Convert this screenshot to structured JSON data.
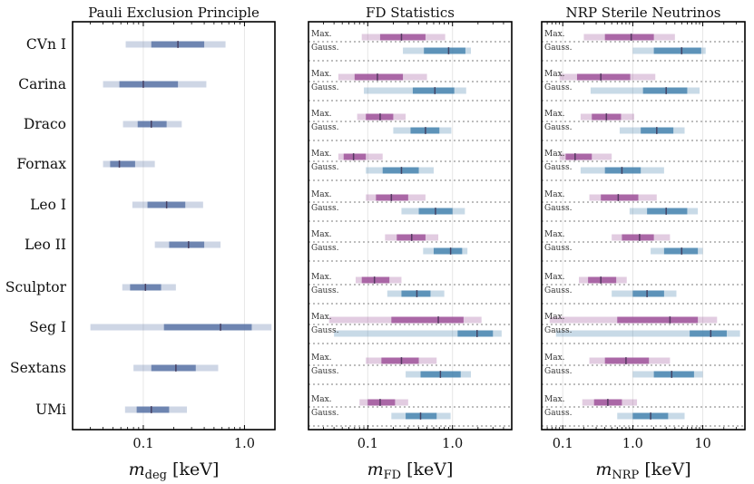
{
  "chart_data": [
    {
      "type": "interval",
      "title": "Pauli Exclusion Principle",
      "xlabel_var": "m",
      "xlabel_sub": "deg",
      "xlabel_unit": " [keV]",
      "xscale": "log",
      "xlim": [
        0.02,
        2.0
      ],
      "xticks": [
        0.1,
        1.0
      ],
      "xtick_labels": [
        "0.1",
        "1.0"
      ],
      "categories": [
        "CVn I",
        "Carina",
        "Draco",
        "Fornax",
        "Leo I",
        "Leo II",
        "Sculptor",
        "Seg I",
        "Sextans",
        "UMi"
      ],
      "series": [
        {
          "name": "",
          "color": "#5d77a8",
          "values": [
            {
              "median": 0.22,
              "inner": [
                0.12,
                0.4
              ],
              "outer": [
                0.067,
                0.65
              ]
            },
            {
              "median": 0.1,
              "inner": [
                0.058,
                0.22
              ],
              "outer": [
                0.04,
                0.42
              ]
            },
            {
              "median": 0.12,
              "inner": [
                0.088,
                0.17
              ],
              "outer": [
                0.063,
                0.24
              ]
            },
            {
              "median": 0.058,
              "inner": [
                0.047,
                0.083
              ],
              "outer": [
                0.04,
                0.13
              ]
            },
            {
              "median": 0.17,
              "inner": [
                0.11,
                0.26
              ],
              "outer": [
                0.078,
                0.39
              ]
            },
            {
              "median": 0.28,
              "inner": [
                0.18,
                0.4
              ],
              "outer": [
                0.13,
                0.58
              ]
            },
            {
              "median": 0.105,
              "inner": [
                0.074,
                0.15
              ],
              "outer": [
                0.062,
                0.21
              ]
            },
            {
              "median": 0.58,
              "inner": [
                0.16,
                1.18
              ],
              "outer": [
                0.03,
                1.85
              ]
            },
            {
              "median": 0.21,
              "inner": [
                0.12,
                0.33
              ],
              "outer": [
                0.08,
                0.55
              ]
            },
            {
              "median": 0.12,
              "inner": [
                0.086,
                0.18
              ],
              "outer": [
                0.066,
                0.27
              ]
            }
          ]
        }
      ]
    },
    {
      "type": "interval",
      "title": "FD Statistics",
      "xlabel_var": "m",
      "xlabel_sub": "FD",
      "xlabel_unit": " [keV]",
      "xscale": "log",
      "xlim": [
        0.02,
        5.0
      ],
      "xticks": [
        0.1,
        1.0
      ],
      "xtick_labels": [
        "0.1",
        "1.0"
      ],
      "categories": [
        "CVn I",
        "Carina",
        "Draco",
        "Fornax",
        "Leo I",
        "Leo II",
        "Sculptor",
        "Seg I",
        "Sextans",
        "UMi"
      ],
      "series": [
        {
          "name": "Max.",
          "color": "#a0559b",
          "values": [
            {
              "median": 0.25,
              "inner": [
                0.14,
                0.48
              ],
              "outer": [
                0.085,
                0.82
              ]
            },
            {
              "median": 0.13,
              "inner": [
                0.07,
                0.26
              ],
              "outer": [
                0.045,
                0.5
              ]
            },
            {
              "median": 0.14,
              "inner": [
                0.095,
                0.2
              ],
              "outer": [
                0.075,
                0.28
              ]
            },
            {
              "median": 0.068,
              "inner": [
                0.052,
                0.095
              ],
              "outer": [
                0.045,
                0.15
              ]
            },
            {
              "median": 0.19,
              "inner": [
                0.125,
                0.3
              ],
              "outer": [
                0.095,
                0.48
              ]
            },
            {
              "median": 0.33,
              "inner": [
                0.22,
                0.48
              ],
              "outer": [
                0.16,
                0.68
              ]
            },
            {
              "median": 0.12,
              "inner": [
                0.085,
                0.18
              ],
              "outer": [
                0.072,
                0.25
              ]
            },
            {
              "median": 0.68,
              "inner": [
                0.19,
                1.35
              ],
              "outer": [
                0.035,
                2.2
              ]
            },
            {
              "median": 0.25,
              "inner": [
                0.145,
                0.4
              ],
              "outer": [
                0.095,
                0.65
              ]
            },
            {
              "median": 0.14,
              "inner": [
                0.1,
                0.21
              ],
              "outer": [
                0.08,
                0.3
              ]
            }
          ]
        },
        {
          "name": "Gauss.",
          "color": "#4a86b0",
          "values": [
            {
              "median": 0.9,
              "inner": [
                0.46,
                1.42
              ],
              "outer": [
                0.26,
                1.65
              ]
            },
            {
              "median": 0.62,
              "inner": [
                0.34,
                1.05
              ],
              "outer": [
                0.09,
                1.45
              ]
            },
            {
              "median": 0.48,
              "inner": [
                0.32,
                0.7
              ],
              "outer": [
                0.2,
                0.97
              ]
            },
            {
              "median": 0.25,
              "inner": [
                0.15,
                0.4
              ],
              "outer": [
                0.095,
                0.6
              ]
            },
            {
              "median": 0.63,
              "inner": [
                0.4,
                1.0
              ],
              "outer": [
                0.25,
                1.4
              ]
            },
            {
              "median": 0.95,
              "inner": [
                0.6,
                1.3
              ],
              "outer": [
                0.45,
                1.5
              ]
            },
            {
              "median": 0.38,
              "inner": [
                0.25,
                0.55
              ],
              "outer": [
                0.17,
                0.8
              ]
            },
            {
              "median": 1.95,
              "inner": [
                1.15,
                3.0
              ],
              "outer": [
                0.04,
                3.8
              ]
            },
            {
              "median": 0.72,
              "inner": [
                0.42,
                1.25
              ],
              "outer": [
                0.28,
                1.65
              ]
            },
            {
              "median": 0.42,
              "inner": [
                0.28,
                0.65
              ],
              "outer": [
                0.19,
                0.95
              ]
            }
          ]
        }
      ]
    },
    {
      "type": "interval",
      "title": "NRP Sterile Neutrinos",
      "xlabel_var": "m",
      "xlabel_sub": "NRP",
      "xlabel_unit": " [keV]",
      "xscale": "log",
      "xlim": [
        0.05,
        40.0
      ],
      "xticks": [
        0.1,
        1.0,
        10.0
      ],
      "xtick_labels": [
        "0.1",
        "1.0",
        "10"
      ],
      "categories": [
        "CVn I",
        "Carina",
        "Draco",
        "Fornax",
        "Leo I",
        "Leo II",
        "Sculptor",
        "Seg I",
        "Sextans",
        "UMi"
      ],
      "series": [
        {
          "name": "Max.",
          "color": "#a0559b",
          "values": [
            {
              "median": 0.95,
              "inner": [
                0.4,
                2.0
              ],
              "outer": [
                0.2,
                4.0
              ]
            },
            {
              "median": 0.35,
              "inner": [
                0.16,
                0.92
              ],
              "outer": [
                0.09,
                2.1
              ]
            },
            {
              "median": 0.42,
              "inner": [
                0.26,
                0.68
              ],
              "outer": [
                0.18,
                1.05
              ]
            },
            {
              "median": 0.15,
              "inner": [
                0.11,
                0.26
              ],
              "outer": [
                0.09,
                0.5
              ]
            },
            {
              "median": 0.62,
              "inner": [
                0.35,
                1.2
              ],
              "outer": [
                0.24,
                2.2
              ]
            },
            {
              "median": 1.25,
              "inner": [
                0.7,
                2.0
              ],
              "outer": [
                0.5,
                3.4
              ]
            },
            {
              "median": 0.35,
              "inner": [
                0.23,
                0.58
              ],
              "outer": [
                0.17,
                0.82
              ]
            },
            {
              "median": 3.4,
              "inner": [
                0.6,
                8.5
              ],
              "outer": [
                0.065,
                16.0
              ]
            },
            {
              "median": 0.8,
              "inner": [
                0.4,
                1.7
              ],
              "outer": [
                0.24,
                3.4
              ]
            },
            {
              "median": 0.44,
              "inner": [
                0.28,
                0.7
              ],
              "outer": [
                0.19,
                1.15
              ]
            }
          ]
        },
        {
          "name": "Gauss.",
          "color": "#4a86b0",
          "values": [
            {
              "median": 5.0,
              "inner": [
                2.0,
                9.5
              ],
              "outer": [
                1.0,
                11.0
              ]
            },
            {
              "median": 3.0,
              "inner": [
                1.4,
                6.0
              ],
              "outer": [
                0.25,
                9.0
              ]
            },
            {
              "median": 2.2,
              "inner": [
                1.3,
                3.8
              ],
              "outer": [
                0.65,
                5.5
              ]
            },
            {
              "median": 0.7,
              "inner": [
                0.4,
                1.3
              ],
              "outer": [
                0.18,
                2.8
              ]
            },
            {
              "median": 3.0,
              "inner": [
                1.6,
                6.0
              ],
              "outer": [
                0.9,
                8.5
              ]
            },
            {
              "median": 5.0,
              "inner": [
                2.8,
                8.5
              ],
              "outer": [
                1.8,
                10.0
              ]
            },
            {
              "median": 1.6,
              "inner": [
                1.0,
                2.8
              ],
              "outer": [
                0.5,
                4.2
              ]
            },
            {
              "median": 13.0,
              "inner": [
                6.5,
                22.0
              ],
              "outer": [
                0.08,
                34.0
              ]
            },
            {
              "median": 3.6,
              "inner": [
                2.0,
                7.5
              ],
              "outer": [
                1.0,
                10.0
              ]
            },
            {
              "median": 1.8,
              "inner": [
                1.0,
                3.2
              ],
              "outer": [
                0.6,
                5.5
              ]
            }
          ]
        }
      ]
    }
  ]
}
